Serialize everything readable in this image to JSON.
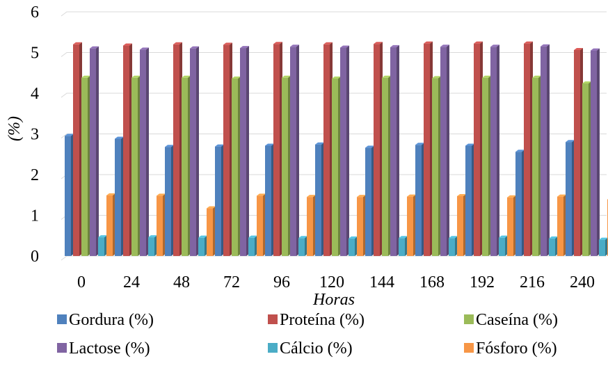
{
  "chart_data": {
    "type": "bar",
    "style": "3d-clustered-column",
    "title": "",
    "xlabel": "Horas",
    "ylabel": "(%)",
    "ylim": [
      0,
      6
    ],
    "yticks": [
      0,
      1,
      2,
      3,
      4,
      5,
      6
    ],
    "grid": true,
    "legend": "bottom",
    "categories": [
      "0",
      "24",
      "48",
      "72",
      "96",
      "120",
      "144",
      "168",
      "192",
      "216",
      "240"
    ],
    "series": [
      {
        "name": "Gordura (%)",
        "color": "#4F81BD",
        "values": [
          2.95,
          2.88,
          2.68,
          2.69,
          2.71,
          2.74,
          2.66,
          2.73,
          2.71,
          2.56,
          2.8
        ]
      },
      {
        "name": "Proteína (%)",
        "color": "#C0504D",
        "values": [
          5.2,
          5.17,
          5.2,
          5.19,
          5.21,
          5.2,
          5.21,
          5.22,
          5.22,
          5.22,
          5.06
        ]
      },
      {
        "name": "Caseína (%)",
        "color": "#9BBB59",
        "values": [
          4.38,
          4.38,
          4.38,
          4.36,
          4.38,
          4.36,
          4.38,
          4.37,
          4.38,
          4.38,
          4.24
        ]
      },
      {
        "name": "Lactose (%)",
        "color": "#8064A2",
        "values": [
          5.1,
          5.07,
          5.1,
          5.11,
          5.14,
          5.12,
          5.13,
          5.14,
          5.14,
          5.15,
          5.05
        ]
      },
      {
        "name": "Cálcio (%)",
        "color": "#4BACC6",
        "values": [
          0.46,
          0.46,
          0.45,
          0.45,
          0.44,
          0.43,
          0.44,
          0.44,
          0.45,
          0.43,
          0.4
        ]
      },
      {
        "name": "Fósforo (%)",
        "color": "#F79646",
        "values": [
          1.49,
          1.48,
          1.17,
          1.48,
          1.45,
          1.45,
          1.46,
          1.47,
          1.44,
          1.46,
          1.39
        ]
      }
    ]
  }
}
